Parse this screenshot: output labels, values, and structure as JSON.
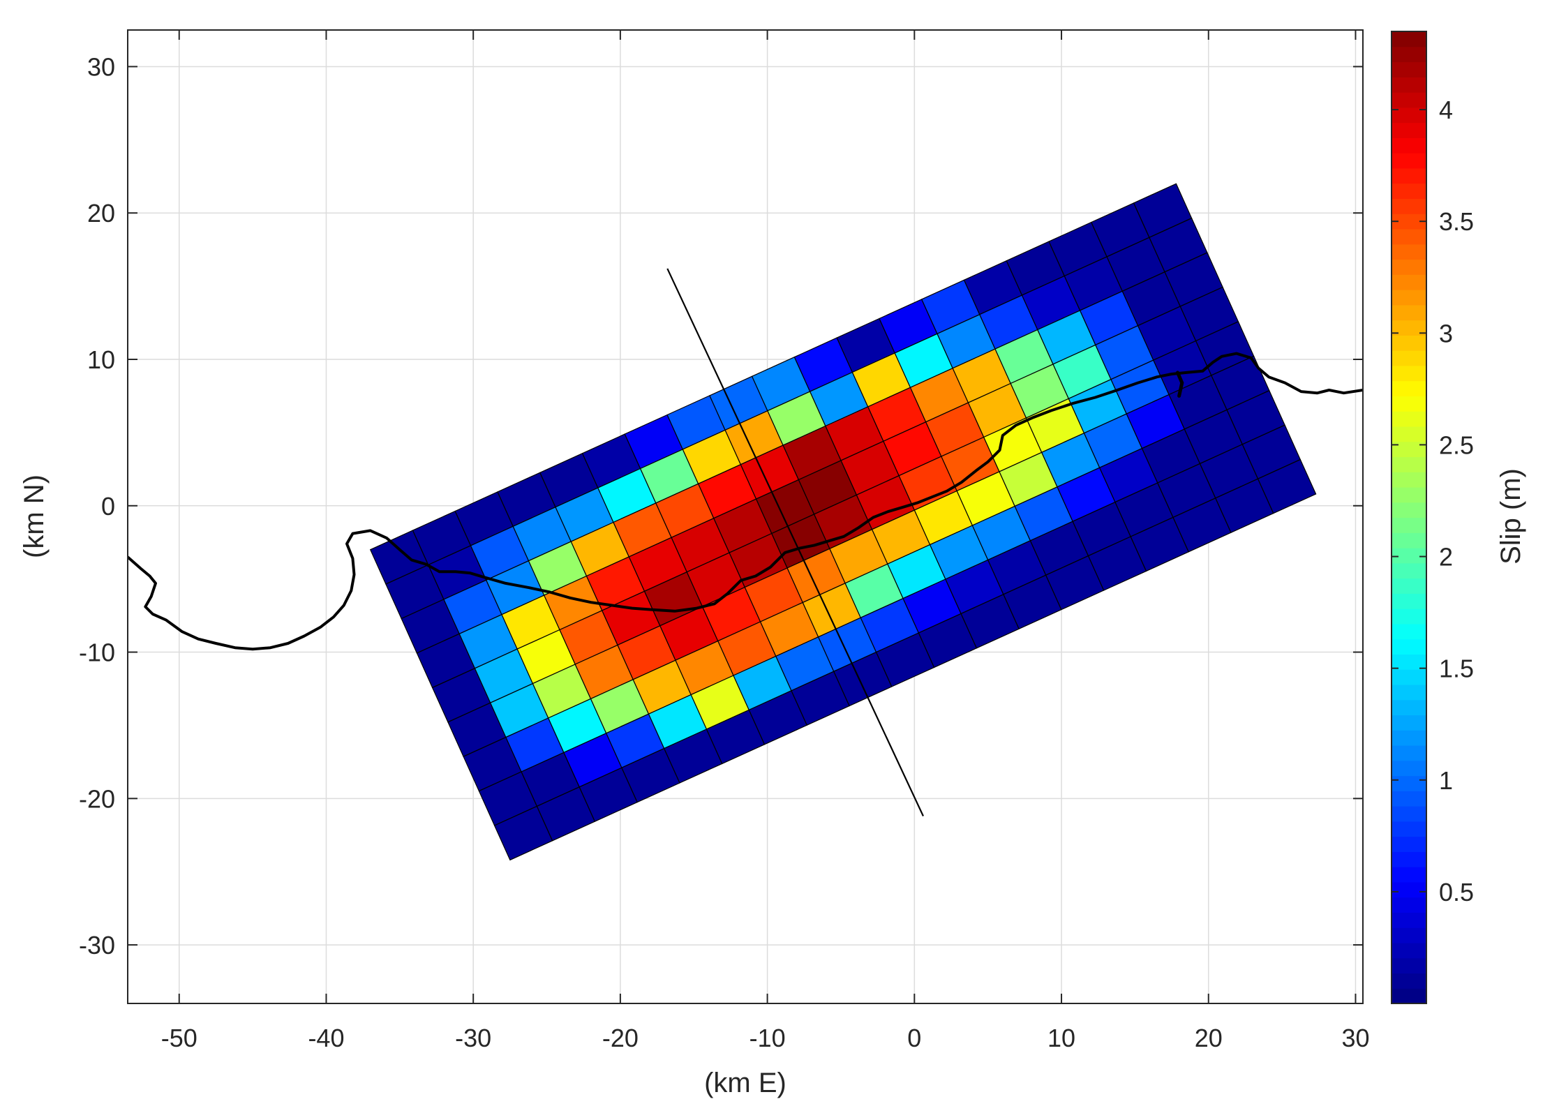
{
  "chart_data": {
    "type": "heatmap",
    "title": "",
    "xlabel": "(km E)",
    "ylabel": "(km N)",
    "xlim": [
      -53.5,
      30.5
    ],
    "ylim": [
      -34,
      32.5
    ],
    "xticks": [
      -50,
      -40,
      -30,
      -20,
      -10,
      0,
      10,
      20,
      30
    ],
    "yticks": [
      -30,
      -20,
      -10,
      0,
      10,
      20,
      30
    ],
    "grid": true,
    "colorbar": {
      "label": "Slip (m)",
      "range": [
        0,
        4.35
      ],
      "ticks": [
        0.5,
        1,
        1.5,
        2,
        2.5,
        3,
        3.5,
        4
      ],
      "colormap": "jet",
      "levels": 64
    },
    "fault": {
      "corners": {
        "top_left": [
          -37,
          -3
        ],
        "top_right": [
          17.8,
          22
        ],
        "bottom_right": [
          27,
          1.2
        ],
        "bottom_left": [
          -27.5,
          -24.2
        ]
      },
      "along_strike_patches": 19,
      "down_dip_patches": 9,
      "slip_rows": [
        [
          0.1,
          0.1,
          0.1,
          0.1,
          0.1,
          0.2,
          0.5,
          0.9,
          1.0,
          1.1,
          0.6,
          0.2,
          0.5,
          0.8,
          0.2,
          0.1,
          0.1,
          0.1,
          0.1
        ],
        [
          0.1,
          0.2,
          0.9,
          1.1,
          1.2,
          1.6,
          2.1,
          2.9,
          3.1,
          2.3,
          1.2,
          2.9,
          1.6,
          1.1,
          0.8,
          0.3,
          0.2,
          0.1,
          0.1
        ],
        [
          0.1,
          0.9,
          1.1,
          2.3,
          3.0,
          3.4,
          3.5,
          3.8,
          3.9,
          4.2,
          4.0,
          3.7,
          3.2,
          3.0,
          2.1,
          1.3,
          0.8,
          0.1,
          0.1
        ],
        [
          0.1,
          1.2,
          2.8,
          3.2,
          3.7,
          3.9,
          4.0,
          4.1,
          4.3,
          4.3,
          4.0,
          3.8,
          3.5,
          3.0,
          2.2,
          1.9,
          0.9,
          0.2,
          0.1
        ],
        [
          0.1,
          1.3,
          2.7,
          3.4,
          3.9,
          4.2,
          4.0,
          4.1,
          4.3,
          4.2,
          4.0,
          3.6,
          3.4,
          2.7,
          2.6,
          1.3,
          0.9,
          0.2,
          0.1
        ],
        [
          0.1,
          1.4,
          2.4,
          3.3,
          3.6,
          3.9,
          3.7,
          3.5,
          3.3,
          3.1,
          3.0,
          2.8,
          2.7,
          2.5,
          1.2,
          1.0,
          0.5,
          0.1,
          0.1
        ],
        [
          0.1,
          0.8,
          1.6,
          2.3,
          3.0,
          3.2,
          3.4,
          3.2,
          3.0,
          2.0,
          1.5,
          1.2,
          1.1,
          0.9,
          0.6,
          0.3,
          0.1,
          0.1,
          0.1
        ],
        [
          0.1,
          0.1,
          0.5,
          0.8,
          1.5,
          2.6,
          1.3,
          1.0,
          0.9,
          0.8,
          0.5,
          0.3,
          0.2,
          0.1,
          0.1,
          0.1,
          0.1,
          0.1,
          0.1
        ],
        [
          0.1,
          0.1,
          0.1,
          0.1,
          0.1,
          0.1,
          0.1,
          0.1,
          0.1,
          0.1,
          0.1,
          0.1,
          0.1,
          0.1,
          0.1,
          0.1,
          0.1,
          0.1,
          0.1
        ]
      ]
    },
    "profile_line": [
      [
        -16.8,
        16.2
      ],
      [
        0.6,
        -21.2
      ]
    ],
    "coastline": [
      [
        -53.5,
        -3.5
      ],
      [
        -52.6,
        -4.3
      ],
      [
        -52.0,
        -4.8
      ],
      [
        -51.6,
        -5.3
      ],
      [
        -51.9,
        -6.2
      ],
      [
        -52.3,
        -6.9
      ],
      [
        -51.8,
        -7.4
      ],
      [
        -50.9,
        -7.8
      ],
      [
        -49.8,
        -8.6
      ],
      [
        -48.7,
        -9.1
      ],
      [
        -47.5,
        -9.4
      ],
      [
        -46.2,
        -9.7
      ],
      [
        -45.0,
        -9.8
      ],
      [
        -43.8,
        -9.7
      ],
      [
        -42.6,
        -9.4
      ],
      [
        -41.5,
        -8.9
      ],
      [
        -40.4,
        -8.3
      ],
      [
        -39.5,
        -7.6
      ],
      [
        -38.8,
        -6.8
      ],
      [
        -38.3,
        -5.8
      ],
      [
        -38.1,
        -4.7
      ],
      [
        -38.2,
        -3.6
      ],
      [
        -38.6,
        -2.6
      ],
      [
        -38.2,
        -1.9
      ],
      [
        -37.0,
        -1.7
      ],
      [
        -35.9,
        -2.2
      ],
      [
        -35.0,
        -3.0
      ],
      [
        -34.2,
        -3.7
      ],
      [
        -33.2,
        -4.0
      ],
      [
        -32.3,
        -4.5
      ],
      [
        -31.2,
        -4.5
      ],
      [
        -30.2,
        -4.6
      ],
      [
        -29.2,
        -4.9
      ],
      [
        -27.8,
        -5.3
      ],
      [
        -26.2,
        -5.6
      ],
      [
        -24.8,
        -5.9
      ],
      [
        -23.4,
        -6.3
      ],
      [
        -22.0,
        -6.6
      ],
      [
        -20.6,
        -6.8
      ],
      [
        -19.2,
        -7.0
      ],
      [
        -17.8,
        -7.1
      ],
      [
        -16.3,
        -7.2
      ],
      [
        -14.8,
        -7.0
      ],
      [
        -13.6,
        -6.7
      ],
      [
        -12.7,
        -6.0
      ],
      [
        -11.8,
        -5.1
      ],
      [
        -10.8,
        -4.8
      ],
      [
        -9.8,
        -4.2
      ],
      [
        -8.8,
        -3.2
      ],
      [
        -7.8,
        -2.9
      ],
      [
        -6.8,
        -2.7
      ],
      [
        -5.8,
        -2.4
      ],
      [
        -4.8,
        -2.1
      ],
      [
        -3.8,
        -1.5
      ],
      [
        -2.8,
        -0.8
      ],
      [
        -1.8,
        -0.4
      ],
      [
        -0.8,
        -0.1
      ],
      [
        0.2,
        0.2
      ],
      [
        1.2,
        0.6
      ],
      [
        2.2,
        1.0
      ],
      [
        3.2,
        1.6
      ],
      [
        4.2,
        2.4
      ],
      [
        5.0,
        3.0
      ],
      [
        5.8,
        3.8
      ],
      [
        6.0,
        4.8
      ],
      [
        6.9,
        5.5
      ],
      [
        8.0,
        6.0
      ],
      [
        9.3,
        6.5
      ],
      [
        10.8,
        7.0
      ],
      [
        12.3,
        7.4
      ],
      [
        13.8,
        7.9
      ],
      [
        15.2,
        8.4
      ],
      [
        16.5,
        8.8
      ],
      [
        17.5,
        9.0
      ],
      [
        18.5,
        9.1
      ],
      [
        19.6,
        9.2
      ],
      [
        20.3,
        9.8
      ],
      [
        20.9,
        10.2
      ],
      [
        21.9,
        10.4
      ],
      [
        22.9,
        10.1
      ],
      [
        23.4,
        9.4
      ],
      [
        24.1,
        8.8
      ],
      [
        25.2,
        8.4
      ],
      [
        26.3,
        7.8
      ],
      [
        27.4,
        7.7
      ],
      [
        28.2,
        7.9
      ],
      [
        29.2,
        7.7
      ],
      [
        30.5,
        7.9
      ]
    ],
    "coastline_spur": [
      [
        17.9,
        9.1
      ],
      [
        18.2,
        8.4
      ],
      [
        18.0,
        7.5
      ]
    ]
  }
}
